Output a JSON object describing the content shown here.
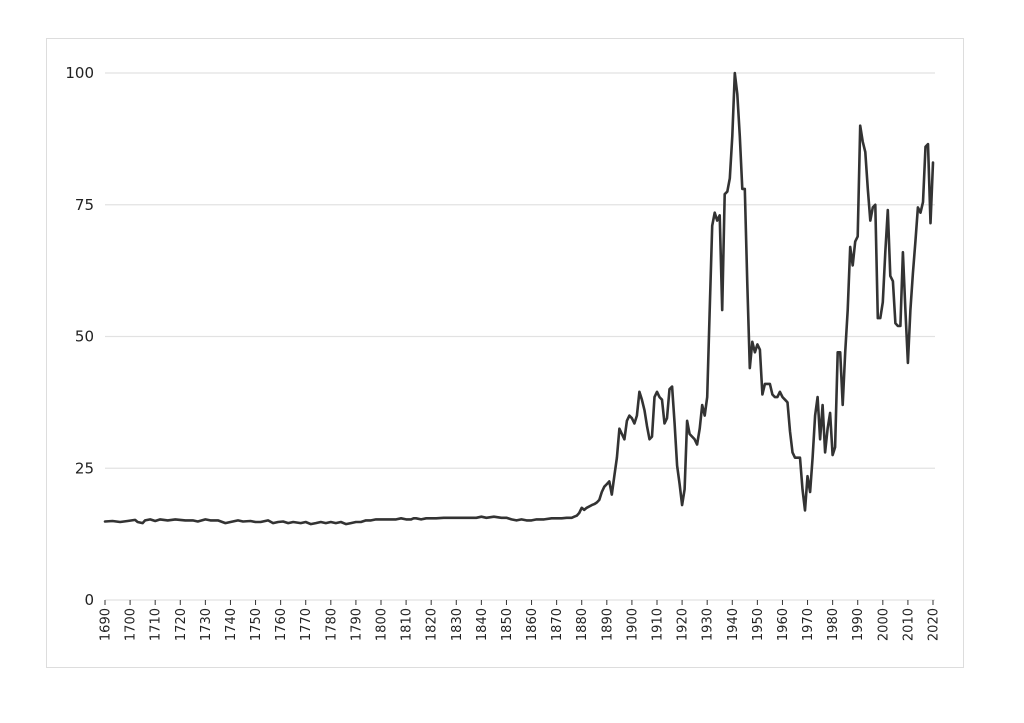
{
  "chart_data": {
    "type": "line",
    "title": "",
    "xlabel": "",
    "ylabel": "",
    "xlim": [
      1690,
      2020
    ],
    "ylim": [
      0,
      100
    ],
    "yticks": [
      0,
      25,
      50,
      75,
      100
    ],
    "xticks": [
      1690,
      1700,
      1710,
      1720,
      1730,
      1740,
      1750,
      1760,
      1770,
      1780,
      1790,
      1800,
      1810,
      1820,
      1830,
      1840,
      1850,
      1860,
      1870,
      1880,
      1890,
      1900,
      1910,
      1920,
      1930,
      1940,
      1950,
      1960,
      1970,
      1980,
      1990,
      2000,
      2010,
      2020
    ],
    "grid": "horizontal",
    "legend": "none",
    "line_color": "#333333",
    "grid_color": "#e2e2e2",
    "series": [
      {
        "x": [
          1690,
          1693,
          1696,
          1699,
          1702,
          1703,
          1705,
          1706,
          1708,
          1710,
          1712,
          1715,
          1718,
          1720,
          1722,
          1725,
          1727,
          1730,
          1732,
          1735,
          1738,
          1740,
          1743,
          1745,
          1748,
          1750,
          1752,
          1755,
          1757,
          1759,
          1761,
          1763,
          1765,
          1768,
          1770,
          1772,
          1774,
          1776,
          1778,
          1780,
          1782,
          1784,
          1786,
          1788,
          1790,
          1792,
          1794,
          1796,
          1798,
          1800,
          1802,
          1804,
          1806,
          1808,
          1810,
          1812,
          1813,
          1814,
          1816,
          1818,
          1820,
          1822,
          1825,
          1828,
          1830,
          1832,
          1834,
          1836,
          1838,
          1840,
          1842,
          1845,
          1848,
          1850,
          1852,
          1854,
          1856,
          1858,
          1860,
          1862,
          1865,
          1868,
          1870,
          1872,
          1874,
          1876,
          1877,
          1878,
          1879,
          1880,
          1881,
          1882,
          1884,
          1885,
          1886,
          1887,
          1888,
          1889,
          1890,
          1891,
          1892,
          1893,
          1894,
          1895,
          1896,
          1897,
          1898,
          1899,
          1900,
          1901,
          1902,
          1903,
          1904,
          1905,
          1906,
          1907,
          1908,
          1909,
          1910,
          1911,
          1912,
          1913,
          1914,
          1915,
          1916,
          1917,
          1918,
          1919,
          1920,
          1921,
          1922,
          1923,
          1924,
          1925,
          1926,
          1927,
          1928,
          1929,
          1930,
          1931,
          1932,
          1933,
          1934,
          1935,
          1936,
          1937,
          1938,
          1939,
          1940,
          1941,
          1942,
          1943,
          1944,
          1945,
          1946,
          1947,
          1948,
          1949,
          1950,
          1951,
          1952,
          1953,
          1954,
          1955,
          1956,
          1957,
          1958,
          1959,
          1960,
          1961,
          1962,
          1963,
          1964,
          1965,
          1966,
          1967,
          1968,
          1969,
          1970,
          1971,
          1972,
          1973,
          1974,
          1975,
          1976,
          1977,
          1978,
          1979,
          1980,
          1981,
          1982,
          1983,
          1984,
          1985,
          1986,
          1987,
          1988,
          1989,
          1990,
          1991,
          1992,
          1993,
          1994,
          1995,
          1996,
          1997,
          1998,
          1999,
          2000,
          2001,
          2002,
          2003,
          2004,
          2005,
          2006,
          2007,
          2008,
          2009,
          2010,
          2011,
          2012,
          2013,
          2014,
          2015,
          2016,
          2017,
          2018,
          2019,
          2020
        ],
        "y": [
          14.9,
          15.0,
          14.8,
          15.0,
          15.2,
          14.8,
          14.6,
          15.1,
          15.3,
          15.0,
          15.3,
          15.1,
          15.3,
          15.2,
          15.1,
          15.1,
          14.9,
          15.3,
          15.1,
          15.1,
          14.6,
          14.8,
          15.1,
          14.9,
          15.0,
          14.8,
          14.8,
          15.1,
          14.6,
          14.8,
          14.9,
          14.6,
          14.8,
          14.6,
          14.8,
          14.4,
          14.6,
          14.8,
          14.6,
          14.8,
          14.6,
          14.8,
          14.4,
          14.6,
          14.8,
          14.8,
          15.1,
          15.1,
          15.3,
          15.3,
          15.3,
          15.3,
          15.3,
          15.5,
          15.3,
          15.3,
          15.5,
          15.5,
          15.3,
          15.5,
          15.5,
          15.5,
          15.6,
          15.6,
          15.6,
          15.6,
          15.6,
          15.6,
          15.6,
          15.8,
          15.6,
          15.8,
          15.6,
          15.6,
          15.3,
          15.1,
          15.3,
          15.1,
          15.1,
          15.3,
          15.3,
          15.5,
          15.5,
          15.5,
          15.6,
          15.6,
          15.8,
          16.0,
          16.5,
          17.5,
          17.1,
          17.5,
          18.0,
          18.2,
          18.5,
          19.0,
          20.5,
          21.5,
          22.0,
          22.5,
          20.0,
          23.5,
          27.0,
          32.5,
          31.5,
          30.5,
          34.0,
          35.0,
          34.5,
          33.5,
          35.0,
          39.5,
          38.0,
          36.0,
          33.0,
          30.5,
          31.0,
          38.5,
          39.5,
          38.5,
          38.0,
          33.5,
          34.5,
          40.0,
          40.5,
          33.5,
          25.5,
          22.0,
          18.0,
          21.0,
          34.0,
          31.5,
          31.0,
          30.5,
          29.5,
          32.5,
          37.0,
          35.0,
          38.5,
          55.0,
          71.0,
          73.5,
          72.0,
          73.0,
          55.0,
          77.0,
          77.5,
          80.0,
          88.0,
          100.0,
          96.0,
          88.0,
          78.0,
          78.0,
          60.0,
          44.0,
          49.0,
          47.0,
          48.5,
          47.5,
          39.0,
          41.0,
          41.0,
          41.0,
          39.0,
          38.5,
          38.5,
          39.5,
          38.5,
          38.0,
          37.5,
          32.0,
          28.0,
          27.0,
          27.0,
          27.0,
          21.0,
          17.0,
          23.5,
          20.5,
          27.0,
          35.0,
          38.5,
          30.5,
          37.0,
          28.0,
          32.5,
          35.5,
          27.5,
          29.0,
          47.0,
          47.0,
          37.0,
          47.0,
          55.0,
          67.0,
          63.5,
          68.0,
          69.0,
          90.0,
          87.0,
          85.0,
          78.0,
          72.0,
          74.5,
          75.0,
          53.5,
          53.5,
          56.5,
          66.0,
          74.0,
          61.5,
          60.5,
          52.5,
          52.0,
          52.0,
          66.0,
          55.0,
          45.0,
          55.0,
          62.0,
          68.0,
          74.5,
          73.5,
          75.5,
          86.0,
          86.5,
          71.5,
          83.0
        ]
      }
    ]
  }
}
